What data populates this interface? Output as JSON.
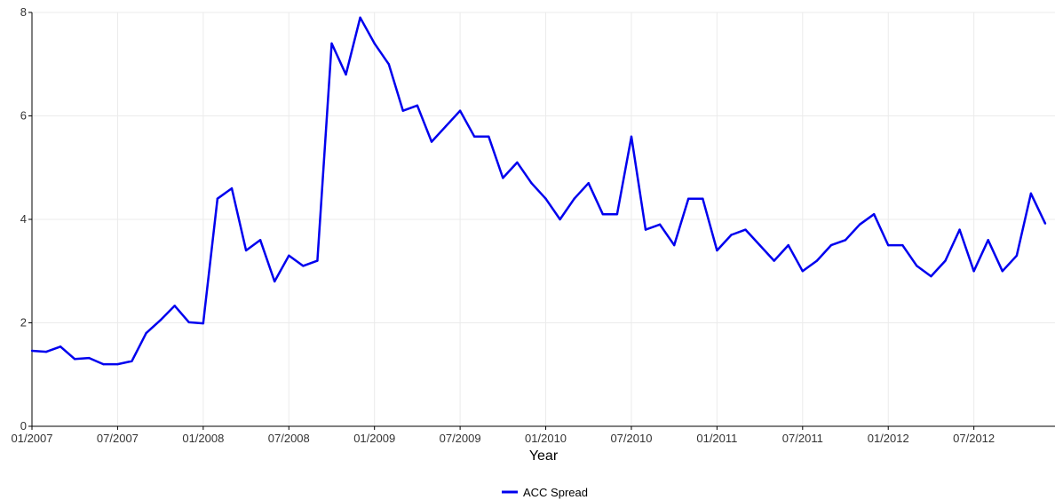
{
  "colors": {
    "series": "#0000ee",
    "grid": "#ebebeb",
    "axis": "#000000"
  },
  "chart_data": {
    "type": "line",
    "title": "",
    "xlabel": "Year",
    "ylabel": "",
    "x_tick_labels": [
      "01/2007",
      "07/2007",
      "01/2008",
      "07/2008",
      "01/2009",
      "07/2009",
      "01/2010",
      "07/2010",
      "01/2011",
      "07/2011",
      "01/2012",
      "07/2012"
    ],
    "y_ticks": [
      0,
      2,
      4,
      6,
      8
    ],
    "ylim": [
      0,
      8
    ],
    "xlim": [
      "2007-01",
      "2012-12"
    ],
    "grid": true,
    "legend_position": "bottom",
    "series": [
      {
        "name": "ACC Spread",
        "x": [
          "2007-01",
          "2007-02",
          "2007-03",
          "2007-04",
          "2007-05",
          "2007-06",
          "2007-07",
          "2007-08",
          "2007-09",
          "2007-10",
          "2007-11",
          "2007-12",
          "2008-01",
          "2008-02",
          "2008-03",
          "2008-04",
          "2008-05",
          "2008-06",
          "2008-07",
          "2008-08",
          "2008-09",
          "2008-10",
          "2008-11",
          "2008-12",
          "2009-01",
          "2009-02",
          "2009-03",
          "2009-04",
          "2009-05",
          "2009-06",
          "2009-07",
          "2009-08",
          "2009-09",
          "2009-10",
          "2009-11",
          "2009-12",
          "2010-01",
          "2010-02",
          "2010-03",
          "2010-04",
          "2010-05",
          "2010-06",
          "2010-07",
          "2010-08",
          "2010-09",
          "2010-10",
          "2010-11",
          "2010-12",
          "2011-01",
          "2011-02",
          "2011-03",
          "2011-04",
          "2011-05",
          "2011-06",
          "2011-07",
          "2011-08",
          "2011-09",
          "2011-10",
          "2011-11",
          "2011-12",
          "2012-01",
          "2012-02",
          "2012-03",
          "2012-04",
          "2012-05",
          "2012-06",
          "2012-07",
          "2012-08",
          "2012-09",
          "2012-10",
          "2012-11",
          "2012-12"
        ],
        "values": [
          1.46,
          1.44,
          1.54,
          1.3,
          1.32,
          1.2,
          1.2,
          1.26,
          1.8,
          2.05,
          2.33,
          2.01,
          1.99,
          4.4,
          4.6,
          3.4,
          3.6,
          2.8,
          3.3,
          3.1,
          3.2,
          7.4,
          6.8,
          7.9,
          7.4,
          7.0,
          6.1,
          6.2,
          5.5,
          5.8,
          6.1,
          5.6,
          5.6,
          4.8,
          5.1,
          4.7,
          4.4,
          4.0,
          4.4,
          4.7,
          4.1,
          4.1,
          5.6,
          3.8,
          3.9,
          3.5,
          4.4,
          4.4,
          3.4,
          3.7,
          3.8,
          3.5,
          3.2,
          3.5,
          3.0,
          3.2,
          3.5,
          3.6,
          3.9,
          4.1,
          3.5,
          3.5,
          3.1,
          2.9,
          3.2,
          3.8,
          3.0,
          3.6,
          3.0,
          3.3,
          4.5,
          3.92
        ]
      }
    ]
  }
}
